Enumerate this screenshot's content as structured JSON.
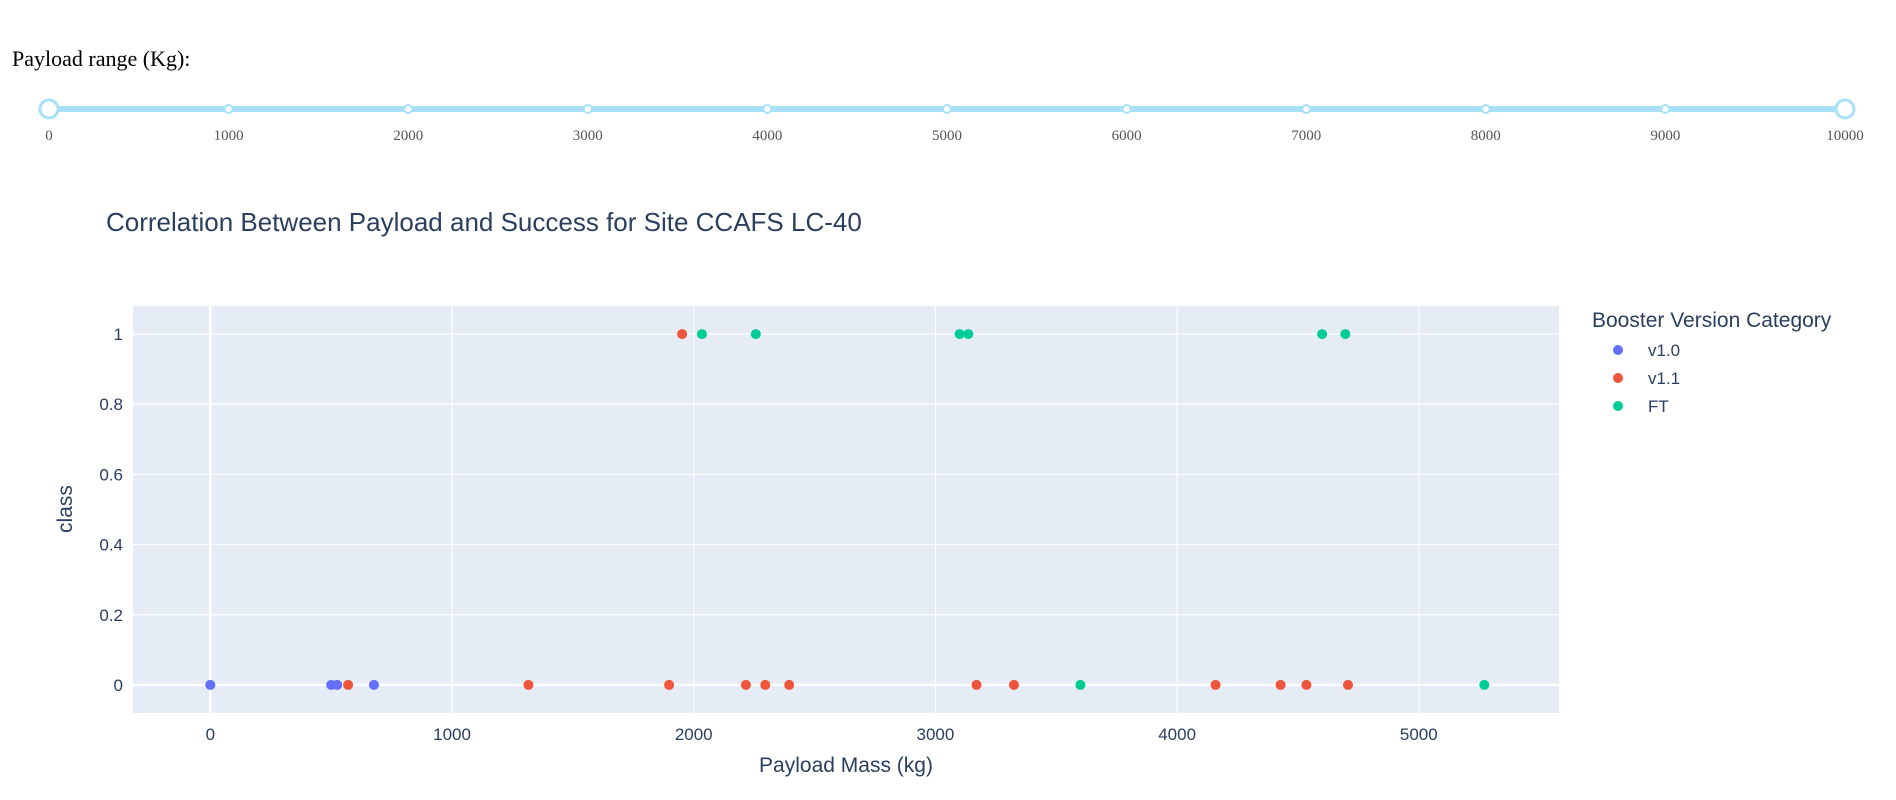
{
  "slider": {
    "label": "Payload range (Kg):",
    "min": 0,
    "max": 10000,
    "value": [
      0,
      10000
    ],
    "marks": [
      "0",
      "1000",
      "2000",
      "3000",
      "4000",
      "5000",
      "6000",
      "7000",
      "8000",
      "9000",
      "10000"
    ],
    "track_color": "#a8e0f8",
    "handle_color": "#a8e0f8"
  },
  "chart_data": {
    "type": "scatter",
    "title": "Correlation Between Payload and Success for Site CCAFS LC-40",
    "xlabel": "Payload Mass (kg)",
    "ylabel": "class",
    "xlim": [
      -320,
      5580
    ],
    "ylim": [
      -0.08,
      1.08
    ],
    "xticks": [
      0,
      1000,
      2000,
      3000,
      4000,
      5000
    ],
    "yticks": [
      0,
      0.2,
      0.4,
      0.6,
      0.8,
      1
    ],
    "yticklabels": [
      "0",
      "0.2",
      "0.4",
      "0.6",
      "0.8",
      "1"
    ],
    "grid": true,
    "plot_bg": "#e5ecf6",
    "legend": {
      "title": "Booster Version Category",
      "placement": "right"
    },
    "series": [
      {
        "name": "v1.0",
        "color": "#636efa",
        "x": [
          0,
          500,
          525,
          677
        ],
        "y": [
          0,
          0,
          0,
          0
        ]
      },
      {
        "name": "v1.1",
        "color": "#ef553b",
        "x": [
          570,
          1316,
          1898,
          1952,
          2216,
          2296,
          2395,
          3170,
          3325,
          4159,
          4428,
          4535,
          4707
        ],
        "y": [
          0,
          0,
          0,
          1,
          0,
          0,
          0,
          0,
          0,
          0,
          0,
          0,
          0
        ]
      },
      {
        "name": "FT",
        "color": "#00cc96",
        "x": [
          2034,
          2257,
          3100,
          3136,
          3600,
          4600,
          4696,
          5271
        ],
        "y": [
          1,
          1,
          1,
          1,
          0,
          1,
          1,
          0
        ]
      }
    ]
  }
}
